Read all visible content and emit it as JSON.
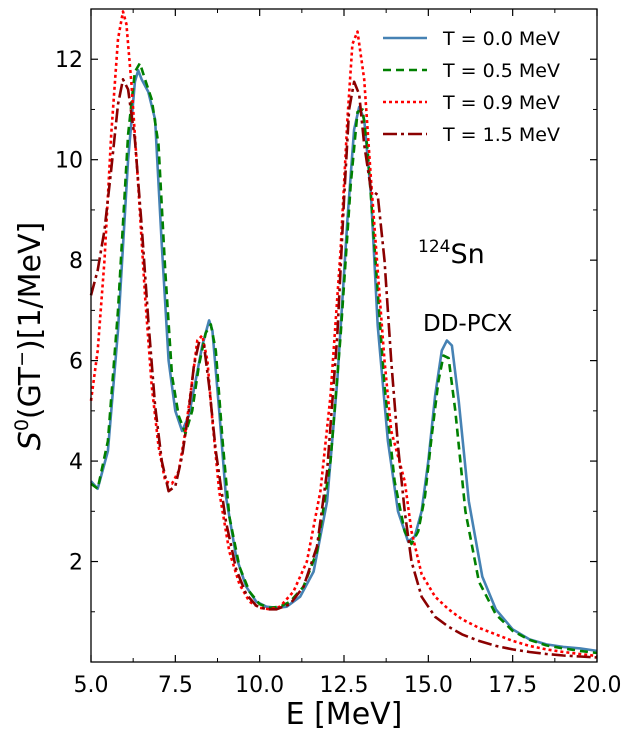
{
  "chart_data": {
    "type": "line",
    "xlabel": "E [MeV]",
    "ylabel_parts": {
      "symbol": "S",
      "sup": "0",
      "mid": "(GT",
      "sup2": "−",
      "tail": ")[1/MeV]"
    },
    "xlim": [
      5.0,
      20.0
    ],
    "ylim": [
      0.0,
      13.0
    ],
    "x_ticks": [
      "5.0",
      "7.5",
      "10.0",
      "12.5",
      "15.0",
      "17.5",
      "20.0"
    ],
    "y_ticks": [
      "2",
      "4",
      "6",
      "8",
      "10",
      "12"
    ],
    "legend_position": "top-right",
    "annotations": {
      "nucleus_mass": "124",
      "nucleus_symbol": "Sn",
      "model": "DD-PCX"
    },
    "series": [
      {
        "name": "T = 0.0 MeV",
        "color": "#4682b4",
        "dash": "solid",
        "x": [
          5.0,
          5.2,
          5.5,
          5.8,
          6.1,
          6.3,
          6.4,
          6.5,
          6.7,
          6.9,
          7.1,
          7.3,
          7.5,
          7.7,
          7.9,
          8.1,
          8.3,
          8.5,
          8.6,
          8.8,
          9.0,
          9.3,
          9.6,
          9.9,
          10.2,
          10.5,
          10.8,
          11.2,
          11.6,
          12.0,
          12.3,
          12.6,
          12.8,
          12.95,
          13.1,
          13.3,
          13.5,
          13.8,
          14.1,
          14.4,
          14.6,
          14.8,
          15.0,
          15.2,
          15.4,
          15.55,
          15.7,
          15.9,
          16.2,
          16.6,
          17.0,
          17.5,
          18.0,
          18.5,
          19.0,
          19.5,
          20.0
        ],
        "y": [
          3.6,
          3.45,
          4.2,
          6.6,
          10.0,
          11.55,
          11.78,
          11.6,
          11.35,
          10.8,
          8.3,
          6.0,
          5.0,
          4.6,
          4.9,
          5.6,
          6.3,
          6.8,
          6.6,
          5.0,
          3.3,
          2.1,
          1.5,
          1.2,
          1.1,
          1.08,
          1.1,
          1.3,
          1.8,
          3.2,
          5.6,
          8.8,
          10.6,
          11.05,
          10.8,
          9.3,
          6.7,
          4.4,
          3.0,
          2.4,
          2.5,
          3.0,
          4.0,
          5.3,
          6.2,
          6.4,
          6.3,
          5.2,
          3.2,
          1.7,
          1.05,
          0.65,
          0.45,
          0.35,
          0.3,
          0.27,
          0.22
        ]
      },
      {
        "name": "T = 0.5 MeV",
        "color": "#008000",
        "dash": "8,5",
        "x": [
          5.0,
          5.2,
          5.5,
          5.8,
          6.1,
          6.3,
          6.45,
          6.6,
          6.8,
          7.0,
          7.2,
          7.4,
          7.6,
          7.8,
          8.0,
          8.2,
          8.4,
          8.55,
          8.7,
          8.9,
          9.1,
          9.4,
          9.7,
          10.0,
          10.3,
          10.6,
          10.9,
          11.3,
          11.7,
          12.1,
          12.4,
          12.7,
          12.9,
          13.05,
          13.2,
          13.4,
          13.7,
          14.0,
          14.3,
          14.5,
          14.7,
          14.9,
          15.1,
          15.3,
          15.45,
          15.6,
          15.8,
          16.1,
          16.5,
          17.0,
          17.5,
          18.0,
          18.5,
          19.0,
          19.5,
          20.0
        ],
        "y": [
          3.55,
          3.45,
          4.4,
          7.0,
          10.5,
          11.75,
          11.92,
          11.6,
          11.2,
          10.3,
          7.8,
          5.7,
          4.9,
          4.55,
          5.0,
          5.9,
          6.55,
          6.72,
          6.2,
          4.4,
          2.9,
          1.9,
          1.4,
          1.15,
          1.08,
          1.1,
          1.2,
          1.5,
          2.2,
          4.0,
          6.5,
          9.5,
          10.95,
          11.0,
          10.2,
          8.3,
          5.5,
          3.6,
          2.6,
          2.35,
          2.6,
          3.3,
          4.5,
          5.6,
          6.1,
          6.05,
          5.0,
          3.0,
          1.6,
          0.95,
          0.62,
          0.44,
          0.33,
          0.27,
          0.22,
          0.18
        ]
      },
      {
        "name": "T = 0.9 MeV",
        "color": "#ff0000",
        "dash": "3,3",
        "x": [
          5.0,
          5.2,
          5.4,
          5.6,
          5.8,
          5.95,
          6.05,
          6.2,
          6.4,
          6.6,
          6.8,
          7.0,
          7.2,
          7.4,
          7.6,
          7.8,
          8.0,
          8.15,
          8.3,
          8.45,
          8.6,
          8.8,
          9.1,
          9.4,
          9.7,
          10.0,
          10.3,
          10.6,
          11.0,
          11.4,
          11.8,
          12.1,
          12.4,
          12.6,
          12.75,
          12.9,
          13.1,
          13.3,
          13.5,
          13.7,
          13.9,
          14.1,
          14.3,
          14.5,
          14.8,
          15.2,
          15.6,
          16.0,
          16.5,
          17.0,
          17.5,
          18.0,
          18.5,
          19.0,
          19.5,
          20.0
        ],
        "y": [
          5.2,
          6.2,
          8.0,
          10.5,
          12.4,
          12.95,
          12.7,
          11.5,
          9.5,
          7.3,
          5.5,
          4.3,
          3.6,
          3.55,
          3.8,
          4.6,
          5.6,
          6.4,
          6.5,
          6.0,
          4.8,
          3.4,
          2.2,
          1.55,
          1.2,
          1.08,
          1.05,
          1.1,
          1.4,
          2.0,
          3.4,
          5.3,
          8.2,
          10.8,
          12.3,
          12.55,
          11.6,
          9.6,
          7.8,
          6.0,
          4.6,
          4.1,
          3.6,
          2.6,
          1.75,
          1.3,
          1.05,
          0.85,
          0.68,
          0.55,
          0.42,
          0.32,
          0.25,
          0.2,
          0.16,
          0.12
        ]
      },
      {
        "name": "T = 1.5 MeV",
        "color": "#8b0000",
        "dash": "14,4,3,4",
        "x": [
          5.0,
          5.2,
          5.4,
          5.6,
          5.8,
          5.95,
          6.1,
          6.3,
          6.5,
          6.7,
          6.9,
          7.1,
          7.3,
          7.5,
          7.7,
          7.9,
          8.05,
          8.2,
          8.35,
          8.5,
          8.7,
          9.0,
          9.3,
          9.6,
          9.9,
          10.2,
          10.5,
          10.9,
          11.3,
          11.7,
          12.0,
          12.3,
          12.5,
          12.65,
          12.8,
          12.95,
          13.1,
          13.3,
          13.5,
          13.7,
          13.9,
          14.1,
          14.3,
          14.5,
          14.8,
          15.2,
          15.6,
          16.0,
          16.5,
          17.0,
          17.5,
          18.0,
          18.5,
          19.0,
          19.5,
          20.0
        ],
        "y": [
          7.3,
          7.8,
          8.6,
          9.8,
          11.1,
          11.6,
          11.4,
          10.4,
          8.7,
          6.8,
          5.1,
          4.0,
          3.4,
          3.5,
          4.1,
          5.0,
          5.9,
          6.35,
          6.3,
          5.5,
          4.2,
          2.8,
          1.85,
          1.35,
          1.12,
          1.05,
          1.05,
          1.15,
          1.5,
          2.3,
          3.8,
          6.5,
          9.2,
          11.0,
          11.55,
          11.3,
          10.3,
          9.4,
          9.3,
          8.0,
          6.0,
          4.3,
          3.0,
          2.0,
          1.3,
          0.9,
          0.7,
          0.55,
          0.42,
          0.32,
          0.25,
          0.2,
          0.16,
          0.13,
          0.11,
          0.09
        ]
      }
    ]
  }
}
